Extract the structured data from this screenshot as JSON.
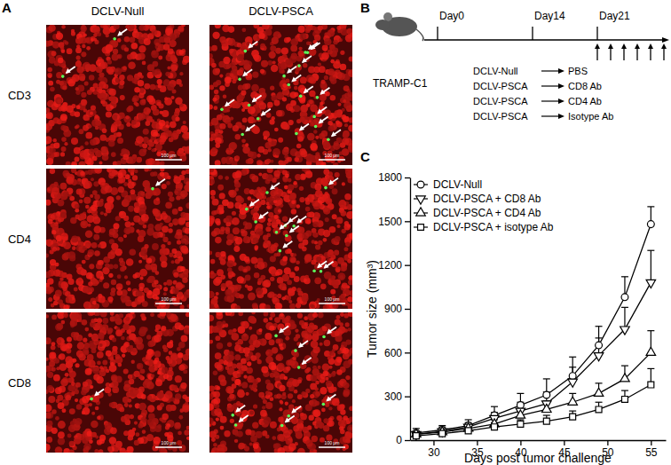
{
  "panel_a": {
    "label": "A",
    "columns": [
      "DCLV-Null",
      "DCLV-PSCA"
    ],
    "rows": [
      "CD3",
      "CD4",
      "CD8"
    ],
    "scale_bar": "100 μm",
    "arrows": [
      [
        2,
        17
      ],
      [
        1,
        11
      ],
      [
        1,
        9
      ]
    ]
  },
  "panel_b": {
    "label": "B",
    "model": "TRAMP-C1",
    "timeline": [
      "Day0",
      "Day14",
      "Day21"
    ],
    "injection_arrows": 6,
    "treatments": [
      {
        "vaccine": "DCLV-Null",
        "antibody": "PBS"
      },
      {
        "vaccine": "DCLV-PSCA",
        "antibody": "CD8 Ab"
      },
      {
        "vaccine": "DCLV-PSCA",
        "antibody": "CD4 Ab"
      },
      {
        "vaccine": "DCLV-PSCA",
        "antibody": "Isotype Ab"
      }
    ]
  },
  "chart_data": {
    "type": "line",
    "panel_label": "C",
    "x_label": "Days post tumor challenge",
    "y_label": "Tumor size (mm³)",
    "x": [
      28,
      31,
      34,
      37,
      40,
      43,
      46,
      49,
      52,
      55
    ],
    "xlim": [
      27.3,
      56.7
    ],
    "xticks": [
      30,
      35,
      40,
      45,
      50,
      55
    ],
    "ylim": [
      0,
      1800
    ],
    "yticks": [
      0,
      300,
      600,
      900,
      1200,
      1500,
      1800
    ],
    "legend": "top-left",
    "series": [
      {
        "name": "DCLV-Null",
        "color": "#000000",
        "marker": "circle",
        "values": [
          50,
          70,
          100,
          170,
          240,
          310,
          440,
          650,
          980,
          1480
        ],
        "errors": [
          30,
          30,
          40,
          60,
          80,
          110,
          130,
          130,
          140,
          120
        ]
      },
      {
        "name": "DCLV-PSCA + CD8 Ab",
        "color": "#000000",
        "marker": "triangle-down",
        "values": [
          40,
          60,
          90,
          150,
          200,
          250,
          400,
          580,
          760,
          1080
        ],
        "errors": [
          20,
          30,
          30,
          40,
          60,
          80,
          100,
          120,
          150,
          220
        ]
      },
      {
        "name": "DCLV-PSCA + CD4 Ab",
        "color": "#000000",
        "marker": "triangle-up",
        "values": [
          40,
          55,
          80,
          110,
          170,
          210,
          260,
          320,
          420,
          600
        ],
        "errors": [
          20,
          20,
          30,
          30,
          40,
          60,
          60,
          70,
          90,
          150
        ]
      },
      {
        "name": "DCLV-PSCA + isotype Ab",
        "color": "#000000",
        "marker": "square",
        "values": [
          30,
          45,
          65,
          90,
          110,
          130,
          160,
          210,
          280,
          380
        ],
        "errors": [
          15,
          20,
          20,
          30,
          30,
          40,
          40,
          50,
          60,
          110
        ]
      }
    ]
  }
}
